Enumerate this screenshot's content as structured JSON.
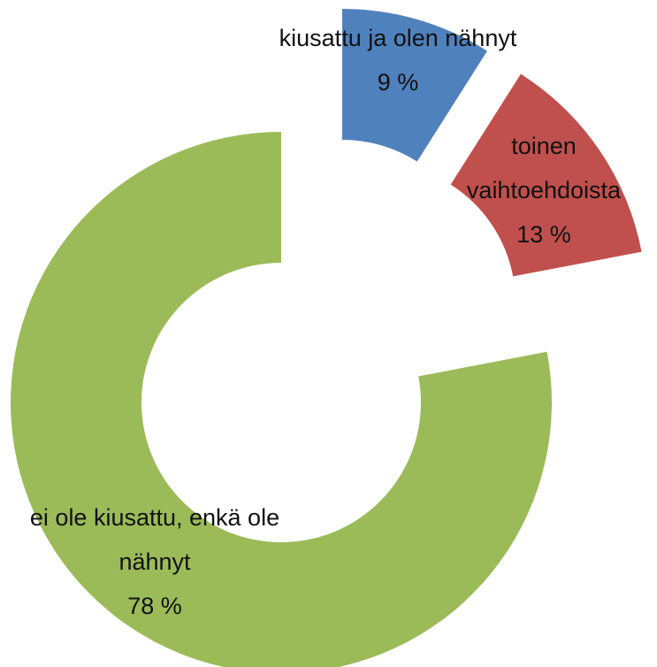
{
  "chart_data": {
    "type": "doughnut",
    "categories": [
      "kiusattu ja olen nähnyt",
      "toinen vaihtoehdoista",
      "ei ole kiusattu, enkä ole nähnyt"
    ],
    "values": [
      9,
      13,
      78
    ],
    "value_labels": [
      "9 %",
      "13 %",
      "78 %"
    ],
    "colors": [
      "#4f81bd",
      "#c0504d",
      "#9bbb59"
    ]
  }
}
